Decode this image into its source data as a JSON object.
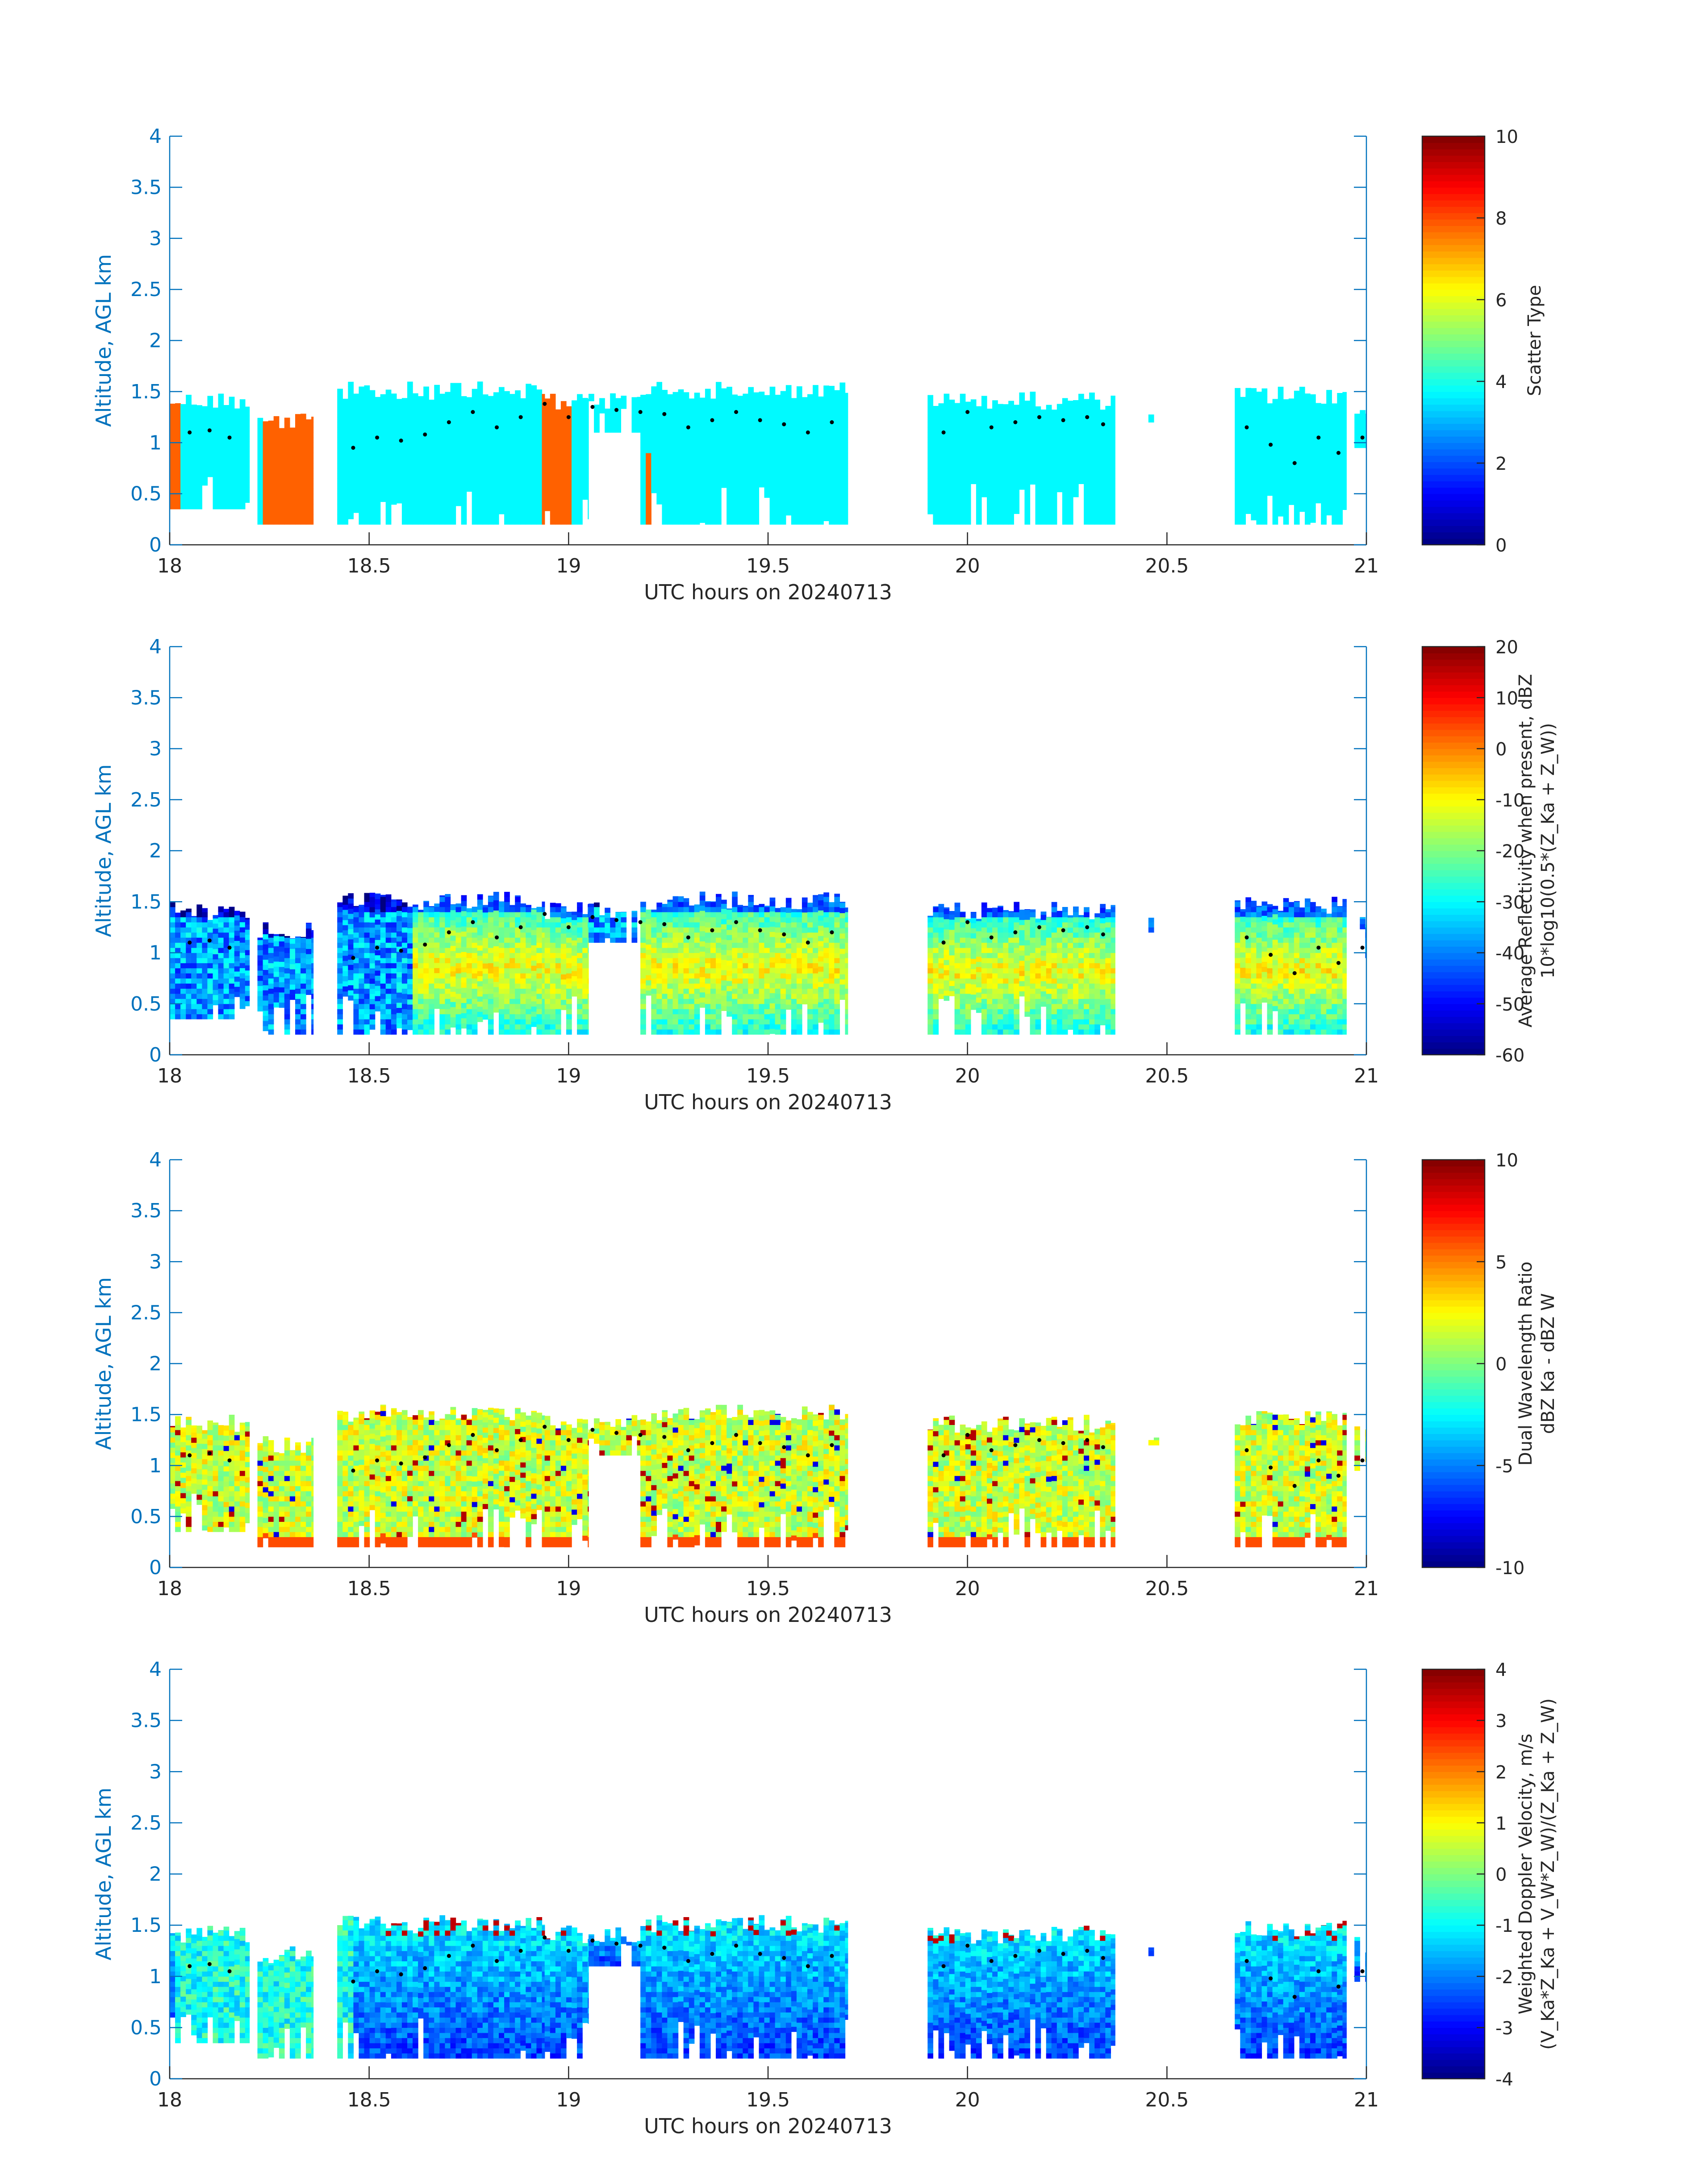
{
  "figure": {
    "background": "#ffffff"
  },
  "chart_data": [
    {
      "type": "heatmap",
      "panel": 1,
      "xlabel": "UTC hours on 20240713",
      "ylabel": "Altitude, AGL km",
      "xlim": [
        18,
        21
      ],
      "ylim": [
        0,
        4
      ],
      "xticks": [
        "18",
        "18.5",
        "19",
        "19.5",
        "20",
        "20.5",
        "21"
      ],
      "yticks": [
        "0",
        "0.5",
        "1",
        "1.5",
        "2",
        "2.5",
        "3",
        "3.5",
        "4"
      ],
      "colorbar": {
        "label": "Scatter Type",
        "label2": "",
        "ticks": [
          "0",
          "2",
          "4",
          "6",
          "8",
          "10"
        ],
        "clim": [
          0,
          10
        ],
        "colormap": "jet"
      },
      "field": "scatter_type",
      "values_present": [
        3.7,
        7.8
      ],
      "axis_color": "#0072BD"
    },
    {
      "type": "heatmap",
      "panel": 2,
      "xlabel": "UTC hours on 20240713",
      "ylabel": "Altitude, AGL km",
      "xlim": [
        18,
        21
      ],
      "ylim": [
        0,
        4
      ],
      "xticks": [
        "18",
        "18.5",
        "19",
        "19.5",
        "20",
        "20.5",
        "21"
      ],
      "yticks": [
        "0",
        "0.5",
        "1",
        "1.5",
        "2",
        "2.5",
        "3",
        "3.5",
        "4"
      ],
      "colorbar": {
        "label": "Average Reflectivity when present, dBZ",
        "label2": "10*log10(0.5*(Z_Ka + Z_W))",
        "ticks": [
          "-60",
          "-50",
          "-40",
          "-30",
          "-20",
          "-10",
          "0",
          "10",
          "20"
        ],
        "clim": [
          -60,
          20
        ],
        "colormap": "jet"
      },
      "field": "reflectivity",
      "axis_color": "#0072BD"
    },
    {
      "type": "heatmap",
      "panel": 3,
      "xlabel": "UTC hours on 20240713",
      "ylabel": "Altitude, AGL km",
      "xlim": [
        18,
        21
      ],
      "ylim": [
        0,
        4
      ],
      "xticks": [
        "18",
        "18.5",
        "19",
        "19.5",
        "20",
        "20.5",
        "21"
      ],
      "yticks": [
        "0",
        "0.5",
        "1",
        "1.5",
        "2",
        "2.5",
        "3",
        "3.5",
        "4"
      ],
      "colorbar": {
        "label": "Dual Wavelength Ratio",
        "label2": "dBZ Ka - dBZ W",
        "ticks": [
          "-10",
          "-5",
          "0",
          "5",
          "10"
        ],
        "clim": [
          -10,
          10
        ],
        "colormap": "jet"
      },
      "field": "dwr",
      "axis_color": "#0072BD"
    },
    {
      "type": "heatmap",
      "panel": 4,
      "xlabel": "UTC hours on 20240713",
      "ylabel": "Altitude, AGL km",
      "xlim": [
        18,
        21
      ],
      "ylim": [
        0,
        4
      ],
      "xticks": [
        "18",
        "18.5",
        "19",
        "19.5",
        "20",
        "20.5",
        "21"
      ],
      "yticks": [
        "0",
        "0.5",
        "1",
        "1.5",
        "2",
        "2.5",
        "3",
        "3.5",
        "4"
      ],
      "colorbar": {
        "label": "Weighted Doppler Velocity, m/s",
        "label2": "(V_Ka*Z_Ka + V_W*Z_W)/(Z_Ka + Z_W)",
        "ticks": [
          "-4",
          "-3",
          "-2",
          "-1",
          "0",
          "1",
          "2",
          "3",
          "4"
        ],
        "clim": [
          -4,
          4
        ],
        "colormap": "jet"
      },
      "field": "velocity",
      "axis_color": "#0072BD"
    }
  ],
  "shared": {
    "cloud_segments": [
      {
        "x0": 18.0,
        "x1": 18.2,
        "top": 1.5,
        "bottom": 0.35
      },
      {
        "x0": 18.22,
        "x1": 18.36,
        "top": 1.3,
        "bottom": 0.2
      },
      {
        "x0": 18.42,
        "x1": 18.94,
        "top": 1.6,
        "bottom": 0.2
      },
      {
        "x0": 18.94,
        "x1": 19.05,
        "top": 1.5,
        "bottom": 0.2
      },
      {
        "x0": 19.05,
        "x1": 19.18,
        "top": 1.5,
        "bottom": 1.1
      },
      {
        "x0": 19.18,
        "x1": 19.7,
        "top": 1.6,
        "bottom": 0.2
      },
      {
        "x0": 19.9,
        "x1": 20.37,
        "top": 1.5,
        "bottom": 0.2
      },
      {
        "x0": 20.44,
        "x1": 20.48,
        "top": 1.35,
        "bottom": 1.2
      },
      {
        "x0": 20.67,
        "x1": 20.95,
        "top": 1.55,
        "bottom": 0.2
      },
      {
        "x0": 20.97,
        "x1": 21.0,
        "top": 1.4,
        "bottom": 0.95
      }
    ],
    "cloud_base_points": [
      {
        "x": 18.05,
        "y": 1.1
      },
      {
        "x": 18.1,
        "y": 1.12
      },
      {
        "x": 18.15,
        "y": 1.05
      },
      {
        "x": 18.46,
        "y": 0.95
      },
      {
        "x": 18.52,
        "y": 1.05
      },
      {
        "x": 18.58,
        "y": 1.02
      },
      {
        "x": 18.64,
        "y": 1.08
      },
      {
        "x": 18.7,
        "y": 1.2
      },
      {
        "x": 18.76,
        "y": 1.3
      },
      {
        "x": 18.82,
        "y": 1.15
      },
      {
        "x": 18.88,
        "y": 1.25
      },
      {
        "x": 18.94,
        "y": 1.38
      },
      {
        "x": 19.0,
        "y": 1.25
      },
      {
        "x": 19.06,
        "y": 1.35
      },
      {
        "x": 19.12,
        "y": 1.32
      },
      {
        "x": 19.18,
        "y": 1.3
      },
      {
        "x": 19.24,
        "y": 1.28
      },
      {
        "x": 19.3,
        "y": 1.15
      },
      {
        "x": 19.36,
        "y": 1.22
      },
      {
        "x": 19.42,
        "y": 1.3
      },
      {
        "x": 19.48,
        "y": 1.22
      },
      {
        "x": 19.54,
        "y": 1.18
      },
      {
        "x": 19.6,
        "y": 1.1
      },
      {
        "x": 19.66,
        "y": 1.2
      },
      {
        "x": 19.94,
        "y": 1.1
      },
      {
        "x": 20.0,
        "y": 1.3
      },
      {
        "x": 20.06,
        "y": 1.15
      },
      {
        "x": 20.12,
        "y": 1.2
      },
      {
        "x": 20.18,
        "y": 1.25
      },
      {
        "x": 20.24,
        "y": 1.22
      },
      {
        "x": 20.3,
        "y": 1.25
      },
      {
        "x": 20.34,
        "y": 1.18
      },
      {
        "x": 20.7,
        "y": 1.15
      },
      {
        "x": 20.76,
        "y": 0.98
      },
      {
        "x": 20.82,
        "y": 0.8
      },
      {
        "x": 20.88,
        "y": 1.05
      },
      {
        "x": 20.93,
        "y": 0.9
      },
      {
        "x": 20.99,
        "y": 1.05
      }
    ]
  }
}
